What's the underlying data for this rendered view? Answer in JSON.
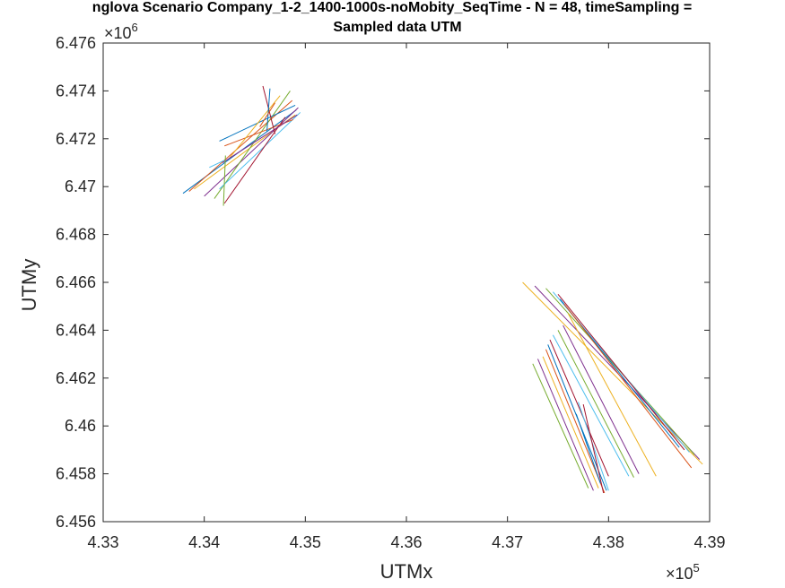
{
  "chart_data": {
    "type": "line",
    "title": "nglova Scenario Company_1-2_1400-1000s-noMobity_SeqTime - N = 48, timeSampling =",
    "subtitle": "Sampled data UTM",
    "xlabel": "UTMx",
    "ylabel": "UTMy",
    "x_exponent_base": "×10",
    "x_exponent_power": "5",
    "y_exponent_base": "×10",
    "y_exponent_power": "6",
    "xlim": [
      433000,
      439000
    ],
    "ylim": [
      6456000,
      6476000
    ],
    "xticks": [
      433000,
      434000,
      435000,
      436000,
      437000,
      438000,
      439000
    ],
    "yticks": [
      6456000,
      6458000,
      6460000,
      6462000,
      6464000,
      6466000,
      6468000,
      6470000,
      6472000,
      6474000,
      6476000
    ],
    "xtick_labels": [
      "4.33",
      "4.34",
      "4.35",
      "4.36",
      "4.37",
      "4.38",
      "4.39"
    ],
    "ytick_labels": [
      "6.456",
      "6.458",
      "6.46",
      "6.462",
      "6.464",
      "6.466",
      "6.468",
      "6.47",
      "6.472",
      "6.474",
      "6.476"
    ],
    "grid": false,
    "series_colors": [
      "#0072BD",
      "#D95319",
      "#EDB120",
      "#7E2F8E",
      "#77AC30",
      "#4DBEEE",
      "#A2142F"
    ],
    "series": [
      {
        "x": [
          433790,
          434910
        ],
        "y": [
          6469720,
          6473200
        ]
      },
      {
        "x": [
          433850,
          434870
        ],
        "y": [
          6469800,
          6473600
        ]
      },
      {
        "x": [
          433900,
          434900
        ],
        "y": [
          6469900,
          6473000
        ]
      },
      {
        "x": [
          434000,
          434930
        ],
        "y": [
          6469600,
          6473300
        ]
      },
      {
        "x": [
          434100,
          434850
        ],
        "y": [
          6469500,
          6474000
        ]
      },
      {
        "x": [
          434150,
          434950
        ],
        "y": [
          6469900,
          6473100
        ]
      },
      {
        "x": [
          434200,
          434800
        ],
        "y": [
          6469300,
          6472900
        ]
      },
      {
        "x": [
          434150,
          434900
        ],
        "y": [
          6471900,
          6473400
        ]
      },
      {
        "x": [
          434200,
          434880
        ],
        "y": [
          6471700,
          6472800
        ]
      },
      {
        "x": [
          434250,
          434750
        ],
        "y": [
          6471200,
          6473800
        ]
      },
      {
        "x": [
          434180,
          434920
        ],
        "y": [
          6471000,
          6473000
        ]
      },
      {
        "x": [
          434190,
          434210
        ],
        "y": [
          6469200,
          6471300
        ]
      },
      {
        "x": [
          434050,
          434200
        ],
        "y": [
          6470800,
          6471100
        ]
      },
      {
        "x": [
          434580,
          434700
        ],
        "y": [
          6474200,
          6472200
        ]
      },
      {
        "x": [
          434620,
          434650
        ],
        "y": [
          6472300,
          6474100
        ]
      },
      {
        "x": [
          434550,
          434700
        ],
        "y": [
          6472500,
          6473500
        ]
      },
      {
        "x": [
          437150,
          438930
        ],
        "y": [
          6466000,
          6458400
        ]
      },
      {
        "x": [
          437270,
          438900
        ],
        "y": [
          6465850,
          6458600
        ]
      },
      {
        "x": [
          437380,
          438850
        ],
        "y": [
          6465750,
          6458800
        ]
      },
      {
        "x": [
          437450,
          438800
        ],
        "y": [
          6465600,
          6458900
        ]
      },
      {
        "x": [
          437500,
          438750
        ],
        "y": [
          6465500,
          6459000
        ]
      },
      {
        "x": [
          437520,
          438700
        ],
        "y": [
          6465300,
          6459100
        ]
      },
      {
        "x": [
          437560,
          438820
        ],
        "y": [
          6465100,
          6458250
        ]
      },
      {
        "x": [
          437600,
          438470
        ],
        "y": [
          6464700,
          6457900
        ]
      },
      {
        "x": [
          437550,
          438300
        ],
        "y": [
          6464200,
          6458000
        ]
      },
      {
        "x": [
          437500,
          438250
        ],
        "y": [
          6464000,
          6457850
        ]
      },
      {
        "x": [
          437450,
          438200
        ],
        "y": [
          6463800,
          6457900
        ]
      },
      {
        "x": [
          437420,
          438000
        ],
        "y": [
          6463600,
          6457900
        ]
      },
      {
        "x": [
          437400,
          437980
        ],
        "y": [
          6463400,
          6457300
        ]
      },
      {
        "x": [
          437380,
          437960
        ],
        "y": [
          6463200,
          6457200
        ]
      },
      {
        "x": [
          437350,
          437900
        ],
        "y": [
          6462900,
          6457400
        ]
      },
      {
        "x": [
          437300,
          437850
        ],
        "y": [
          6462800,
          6457300
        ]
      },
      {
        "x": [
          437250,
          437800
        ],
        "y": [
          6462600,
          6457400
        ]
      },
      {
        "x": [
          437700,
          438000
        ],
        "y": [
          6461000,
          6457300
        ]
      },
      {
        "x": [
          437750,
          437950
        ],
        "y": [
          6460900,
          6457200
        ]
      },
      {
        "x": [
          437680,
          437920
        ],
        "y": [
          6460500,
          6457600
        ]
      }
    ]
  }
}
